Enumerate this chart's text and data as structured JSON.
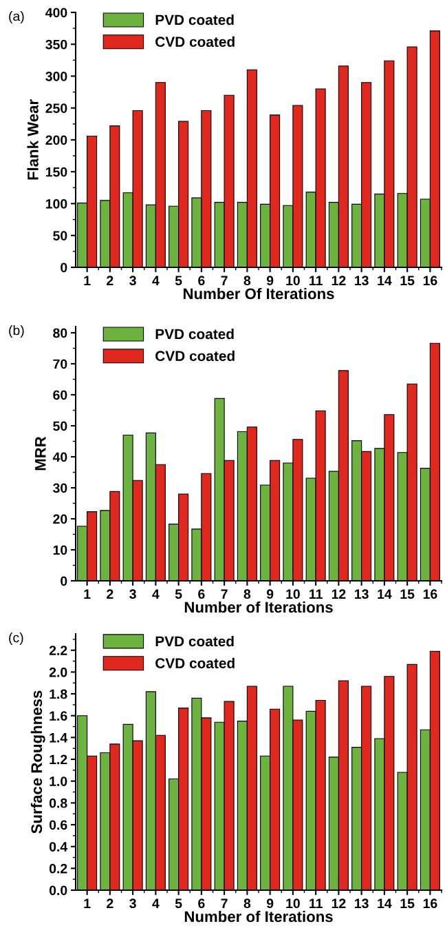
{
  "chart_data": [
    {
      "type": "bar",
      "ylabel": "Flank Wear",
      "xlabel": "Number Of Iterations",
      "annotations": [
        "(a)"
      ],
      "categories": [
        "1",
        "2",
        "3",
        "4",
        "5",
        "6",
        "7",
        "8",
        "9",
        "10",
        "11",
        "12",
        "13",
        "14",
        "15",
        "16"
      ],
      "series": [
        {
          "name": "PVD coated",
          "color": "#6cb33f",
          "values": [
            101,
            105,
            117,
            98,
            96,
            109,
            102,
            102,
            99,
            97,
            118,
            102,
            99,
            115,
            116,
            107
          ]
        },
        {
          "name": "CVD coated",
          "color": "#e0281e",
          "values": [
            206,
            222,
            246,
            290,
            229,
            246,
            270,
            310,
            239,
            254,
            280,
            316,
            290,
            324,
            346,
            371
          ]
        }
      ],
      "ylim": [
        0,
        400
      ],
      "yticks": [
        0,
        50,
        100,
        150,
        200,
        250,
        300,
        350,
        400
      ],
      "legend": "top left",
      "grid": false
    },
    {
      "type": "bar",
      "ylabel": "MRR",
      "xlabel": "Number of Iterations",
      "annotations": [
        "(b)"
      ],
      "categories": [
        "1",
        "2",
        "3",
        "4",
        "5",
        "6",
        "7",
        "8",
        "9",
        "10",
        "11",
        "12",
        "13",
        "14",
        "15",
        "16"
      ],
      "series": [
        {
          "name": "PVD coated",
          "color": "#6cb33f",
          "values": [
            17.6,
            22.7,
            47,
            47.7,
            18.3,
            16.7,
            58.8,
            48.1,
            30.9,
            38,
            33.1,
            35.3,
            45.2,
            42.7,
            41.4,
            36.3
          ]
        },
        {
          "name": "CVD coated",
          "color": "#e0281e",
          "values": [
            22.3,
            28.8,
            32.4,
            37.5,
            28,
            34.6,
            38.8,
            49.6,
            38.8,
            45.6,
            54.8,
            67.8,
            41.7,
            53.6,
            63.5,
            76.6
          ]
        }
      ],
      "ylim": [
        0,
        82
      ],
      "yticks": [
        0,
        10,
        20,
        30,
        40,
        50,
        60,
        70,
        80
      ],
      "legend": "top left",
      "grid": false
    },
    {
      "type": "bar",
      "ylabel": "Surface Roughness",
      "xlabel": "Number of Iterations",
      "annotations": [
        "(c)"
      ],
      "categories": [
        "1",
        "2",
        "3",
        "4",
        "5",
        "6",
        "7",
        "8",
        "9",
        "10",
        "11",
        "12",
        "13",
        "14",
        "15",
        "16"
      ],
      "series": [
        {
          "name": "PVD coated",
          "color": "#6cb33f",
          "values": [
            1.6,
            1.26,
            1.52,
            1.82,
            1.02,
            1.76,
            1.54,
            1.55,
            1.23,
            1.87,
            1.64,
            1.22,
            1.31,
            1.39,
            1.08,
            1.47
          ]
        },
        {
          "name": "CVD coated",
          "color": "#e0281e",
          "values": [
            1.23,
            1.34,
            1.37,
            1.42,
            1.67,
            1.58,
            1.73,
            1.87,
            1.66,
            1.56,
            1.74,
            1.92,
            1.87,
            1.96,
            2.07,
            2.19
          ]
        }
      ],
      "ylim": [
        0,
        2.35
      ],
      "yticks": [
        {
          "value": 0,
          "label": "0.0"
        },
        {
          "value": 0.2,
          "label": "0.2"
        },
        {
          "value": 0.4,
          "label": "0.4"
        },
        {
          "value": 0.6,
          "label": "0.6"
        },
        {
          "value": 0.8,
          "label": "0.8"
        },
        {
          "value": 1.0,
          "label": "1.0"
        },
        {
          "value": 1.2,
          "label": "1.2"
        },
        {
          "value": 1.4,
          "label": "1.4"
        },
        {
          "value": 1.6,
          "label": "1.6"
        },
        {
          "value": 1.8,
          "label": "1.8"
        },
        {
          "value": 2.0,
          "label": "2.0"
        },
        {
          "value": 2.2,
          "label": "2.2"
        }
      ],
      "legend": "top left",
      "grid": false
    }
  ]
}
